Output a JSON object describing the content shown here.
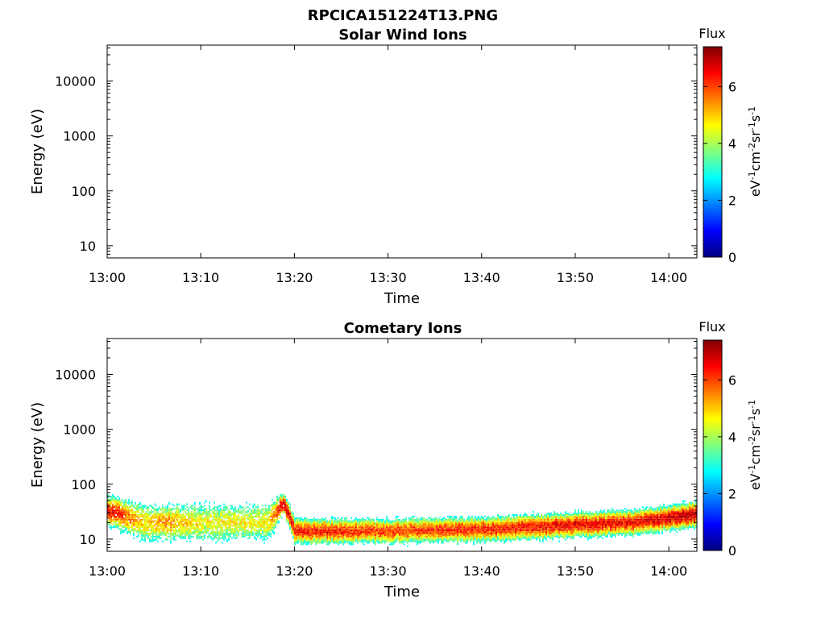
{
  "figure_title": "RPCICA151224T13.PNG",
  "colormap": [
    "#00007f",
    "#0000ff",
    "#007fff",
    "#00ffff",
    "#7fff7f",
    "#ffff00",
    "#ff7f00",
    "#ff0000",
    "#7f0000"
  ],
  "chart_data": [
    {
      "type": "heatmap",
      "title": "Solar Wind Ions",
      "xlabel": "Time",
      "ylabel": "Energy (eV)",
      "x_ticks": [
        "13:00",
        "13:10",
        "13:20",
        "13:30",
        "13:40",
        "13:50",
        "14:00"
      ],
      "x_range_minutes": [
        0,
        63
      ],
      "y_scale": "log",
      "y_range": [
        6,
        45000
      ],
      "y_ticks": [
        10,
        100,
        1000,
        10000
      ],
      "y_tick_labels": [
        "10",
        "100",
        "1000",
        "10000"
      ],
      "colorbar": {
        "title": "Flux",
        "label": "eV-1cm-2sr-1s-1",
        "range": [
          0,
          7.4
        ],
        "ticks": [
          0,
          2,
          4,
          6
        ],
        "tick_labels": [
          "0",
          "2",
          "4",
          "6"
        ]
      },
      "data_present": false,
      "profile": []
    },
    {
      "type": "heatmap",
      "title": "Cometary Ions",
      "xlabel": "Time",
      "ylabel": "Energy (eV)",
      "x_ticks": [
        "13:00",
        "13:10",
        "13:20",
        "13:30",
        "13:40",
        "13:50",
        "14:00"
      ],
      "x_range_minutes": [
        0,
        63
      ],
      "y_scale": "log",
      "y_range": [
        6,
        45000
      ],
      "y_ticks": [
        10,
        100,
        1000,
        10000
      ],
      "y_tick_labels": [
        "10",
        "100",
        "1000",
        "10000"
      ],
      "colorbar": {
        "title": "Flux",
        "label": "eV-1cm-2sr-1s-1",
        "range": [
          0,
          7.4
        ],
        "ticks": [
          0,
          2,
          4,
          6
        ],
        "tick_labels": [
          "0",
          "2",
          "4",
          "6"
        ]
      },
      "data_present": true,
      "energy_max_ev": 80,
      "energy_min_ev": 6,
      "profile": [
        {
          "t": 0,
          "peak_ev": 32,
          "peak_flux": 6.6,
          "width": 0.18
        },
        {
          "t": 1.5,
          "peak_ev": 28,
          "peak_flux": 6.0,
          "width": 0.2
        },
        {
          "t": 4,
          "peak_ev": 20,
          "peak_flux": 4.8,
          "width": 0.25
        },
        {
          "t": 6,
          "peak_ev": 20,
          "peak_flux": 5.4,
          "width": 0.22
        },
        {
          "t": 10,
          "peak_ev": 20,
          "peak_flux": 4.6,
          "width": 0.25
        },
        {
          "t": 17,
          "peak_ev": 20,
          "peak_flux": 4.6,
          "width": 0.25
        },
        {
          "t": 18.8,
          "peak_ev": 45,
          "peak_flux": 7.0,
          "width": 0.12
        },
        {
          "t": 20,
          "peak_ev": 14,
          "peak_flux": 6.4,
          "width": 0.15
        },
        {
          "t": 30,
          "peak_ev": 14,
          "peak_flux": 6.0,
          "width": 0.15
        },
        {
          "t": 40,
          "peak_ev": 15,
          "peak_flux": 6.2,
          "width": 0.15
        },
        {
          "t": 50,
          "peak_ev": 18,
          "peak_flux": 6.6,
          "width": 0.15
        },
        {
          "t": 56,
          "peak_ev": 20,
          "peak_flux": 6.5,
          "width": 0.15
        },
        {
          "t": 63,
          "peak_ev": 28,
          "peak_flux": 7.0,
          "width": 0.15
        }
      ]
    }
  ]
}
